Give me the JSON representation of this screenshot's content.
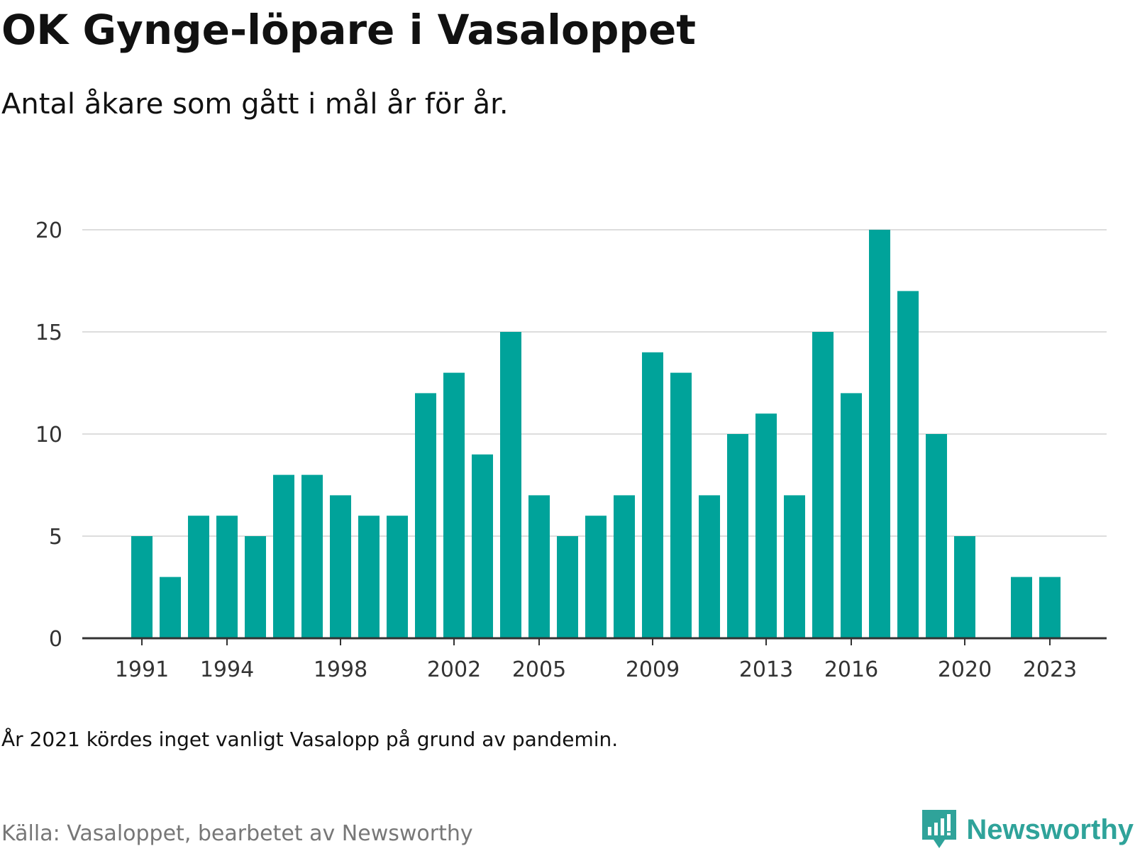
{
  "title": "OK Gynge-löpare i Vasaloppet",
  "subtitle": "Antal åkare som gått i mål år för år.",
  "note": "År 2021 kördes inget vanligt Vasalopp på grund av pandemin.",
  "source": "Källa: Vasaloppet, bearbetet av Newsworthy",
  "brand": {
    "name": "Newsworthy",
    "icon": "newsworthy-logo-icon",
    "color": "#2fa39a"
  },
  "chart_data": {
    "type": "bar",
    "categories": [
      "1991",
      "1992",
      "1993",
      "1994",
      "1995",
      "1996",
      "1997",
      "1998",
      "1999",
      "2000",
      "2001",
      "2002",
      "2003",
      "2004",
      "2005",
      "2006",
      "2007",
      "2008",
      "2009",
      "2010",
      "2011",
      "2012",
      "2013",
      "2014",
      "2015",
      "2016",
      "2017",
      "2018",
      "2019",
      "2020",
      "2021",
      "2022",
      "2023"
    ],
    "values": [
      5,
      3,
      6,
      6,
      5,
      8,
      8,
      7,
      6,
      6,
      12,
      13,
      9,
      15,
      7,
      5,
      6,
      7,
      14,
      13,
      7,
      10,
      11,
      7,
      15,
      12,
      20,
      17,
      10,
      5,
      null,
      3,
      3
    ],
    "x_tick_labels": [
      "1991",
      "1994",
      "1998",
      "2002",
      "2005",
      "2009",
      "2013",
      "2016",
      "2020",
      "2023"
    ],
    "y_ticks": [
      0,
      5,
      10,
      15,
      20
    ],
    "ylim": [
      0,
      20
    ],
    "grid": true,
    "bar_color": "#00a39a",
    "grid_color": "#dddddd",
    "axis_color": "#333333"
  }
}
